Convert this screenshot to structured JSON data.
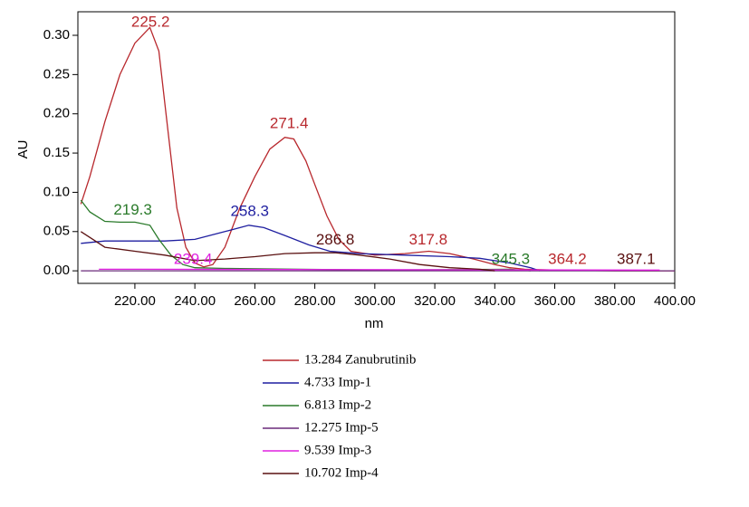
{
  "chart_data": {
    "type": "line",
    "xlabel": "nm",
    "ylabel": "AU",
    "xlim": [
      201,
      400
    ],
    "ylim": [
      -0.016,
      0.33
    ],
    "xticks": [
      {
        "value": 220,
        "label": "220.00"
      },
      {
        "value": 240,
        "label": "240.00"
      },
      {
        "value": 260,
        "label": "260.00"
      },
      {
        "value": 280,
        "label": "280.00"
      },
      {
        "value": 300,
        "label": "300.00"
      },
      {
        "value": 320,
        "label": "320.00"
      },
      {
        "value": 340,
        "label": "340.00"
      },
      {
        "value": 360,
        "label": "360.00"
      },
      {
        "value": 380,
        "label": "380.00"
      },
      {
        "value": 400,
        "label": "400.00"
      }
    ],
    "yticks": [
      {
        "value": 0,
        "label": "0.00"
      },
      {
        "value": 0.05,
        "label": "0.05"
      },
      {
        "value": 0.1,
        "label": "0.10"
      },
      {
        "value": 0.15,
        "label": "0.15"
      },
      {
        "value": 0.2,
        "label": "0.20"
      },
      {
        "value": 0.25,
        "label": "0.25"
      },
      {
        "value": 0.3,
        "label": "0.30"
      }
    ],
    "series": [
      {
        "name": "13.284 Zanubrutinib",
        "color": "#b8282d",
        "x": [
          202,
          205,
          210,
          215,
          220,
          225,
          228,
          231,
          234,
          237,
          240,
          243,
          246,
          250,
          255,
          260,
          265,
          270,
          273,
          277,
          280,
          284,
          288,
          292,
          300,
          310,
          318,
          325,
          333,
          340,
          345,
          350,
          360,
          380,
          400
        ],
        "values": [
          0.085,
          0.12,
          0.19,
          0.25,
          0.29,
          0.31,
          0.28,
          0.18,
          0.08,
          0.03,
          0.01,
          0.005,
          0.008,
          0.03,
          0.08,
          0.12,
          0.155,
          0.17,
          0.168,
          0.14,
          0.11,
          0.07,
          0.04,
          0.025,
          0.02,
          0.022,
          0.025,
          0.022,
          0.015,
          0.008,
          0.004,
          0.002,
          0.001,
          0,
          0
        ]
      },
      {
        "name": "4.733 Imp-1",
        "color": "#1f1fa0",
        "x": [
          202,
          210,
          220,
          230,
          240,
          250,
          258,
          263,
          270,
          278,
          285,
          295,
          310,
          325,
          335,
          345,
          352,
          355
        ],
        "values": [
          0.035,
          0.038,
          0.038,
          0.038,
          0.04,
          0.05,
          0.058,
          0.055,
          0.045,
          0.033,
          0.025,
          0.022,
          0.02,
          0.018,
          0.016,
          0.01,
          0.004,
          0
        ]
      },
      {
        "name": "6.813 Imp-2",
        "color": "#2a7a2a",
        "x": [
          202,
          205,
          210,
          215,
          220,
          225,
          228,
          232,
          236,
          240,
          250,
          275,
          300,
          345,
          352
        ],
        "values": [
          0.09,
          0.075,
          0.063,
          0.062,
          0.062,
          0.058,
          0.04,
          0.02,
          0.008,
          0.004,
          0.003,
          0.002,
          0.001,
          0.002,
          0
        ]
      },
      {
        "name": "12.275 Imp-5",
        "color": "#6a2a7a",
        "x": [
          202,
          250,
          300,
          350,
          400
        ],
        "values": [
          0,
          0,
          0,
          0,
          0
        ]
      },
      {
        "name": "9.539 Imp-3",
        "color": "#e020e0",
        "x": [
          208,
          215,
          222,
          390,
          395
        ],
        "values": [
          0.002,
          0.002,
          0.002,
          0.001,
          0.001
        ]
      },
      {
        "name": "10.702 Imp-4",
        "color": "#5a1010",
        "x": [
          202,
          206,
          210,
          220,
          230,
          240,
          250,
          260,
          270,
          280,
          287,
          295,
          305,
          315,
          325,
          335,
          340
        ],
        "values": [
          0.05,
          0.04,
          0.03,
          0.025,
          0.02,
          0.013,
          0.015,
          0.018,
          0.022,
          0.023,
          0.023,
          0.02,
          0.015,
          0.008,
          0.004,
          0.002,
          0
        ]
      }
    ],
    "annotations": [
      {
        "label": "225.2",
        "x": 225.2,
        "y": 0.316,
        "color": "#b8282d"
      },
      {
        "label": "271.4",
        "x": 271.4,
        "y": 0.187,
        "color": "#b8282d"
      },
      {
        "label": "219.3",
        "x": 219.3,
        "y": 0.077,
        "color": "#2a7a2a"
      },
      {
        "label": "258.3",
        "x": 258.3,
        "y": 0.075,
        "color": "#1f1fa0"
      },
      {
        "label": "239.4",
        "x": 239.4,
        "y": 0.014,
        "color": "#e020e0"
      },
      {
        "label": "286.8",
        "x": 286.8,
        "y": 0.039,
        "color": "#5a1010"
      },
      {
        "label": "317.8",
        "x": 317.8,
        "y": 0.039,
        "color": "#b8282d"
      },
      {
        "label": "345.3",
        "x": 345.3,
        "y": 0.014,
        "color": "#2a7a2a"
      },
      {
        "label": "364.2",
        "x": 364.2,
        "y": 0.014,
        "color": "#b8282d"
      },
      {
        "label": "387.1",
        "x": 387.1,
        "y": 0.014,
        "color": "#5a1010"
      }
    ]
  }
}
